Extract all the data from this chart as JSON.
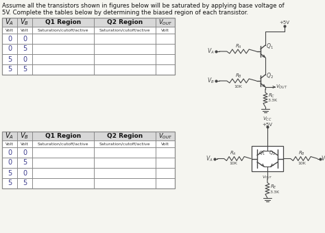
{
  "title_line1": "Assume all the transistors shown in figures below will be saturated by applying base voltage of",
  "title_line2": "5V. Complete the tables below by determining the biased region of each transistor.",
  "table1_rows": [
    [
      "0",
      "0"
    ],
    [
      "0",
      "5"
    ],
    [
      "5",
      "0"
    ],
    [
      "5",
      "5"
    ]
  ],
  "table2_rows": [
    [
      "0",
      "0"
    ],
    [
      "0",
      "5"
    ],
    [
      "5",
      "0"
    ],
    [
      "5",
      "5"
    ]
  ],
  "bg_color": "#f5f5f0",
  "text_color": "#222222",
  "table_line_color": "#888888",
  "header_bg": "#d8d8d8",
  "data_text_color": "#3a3a8c"
}
